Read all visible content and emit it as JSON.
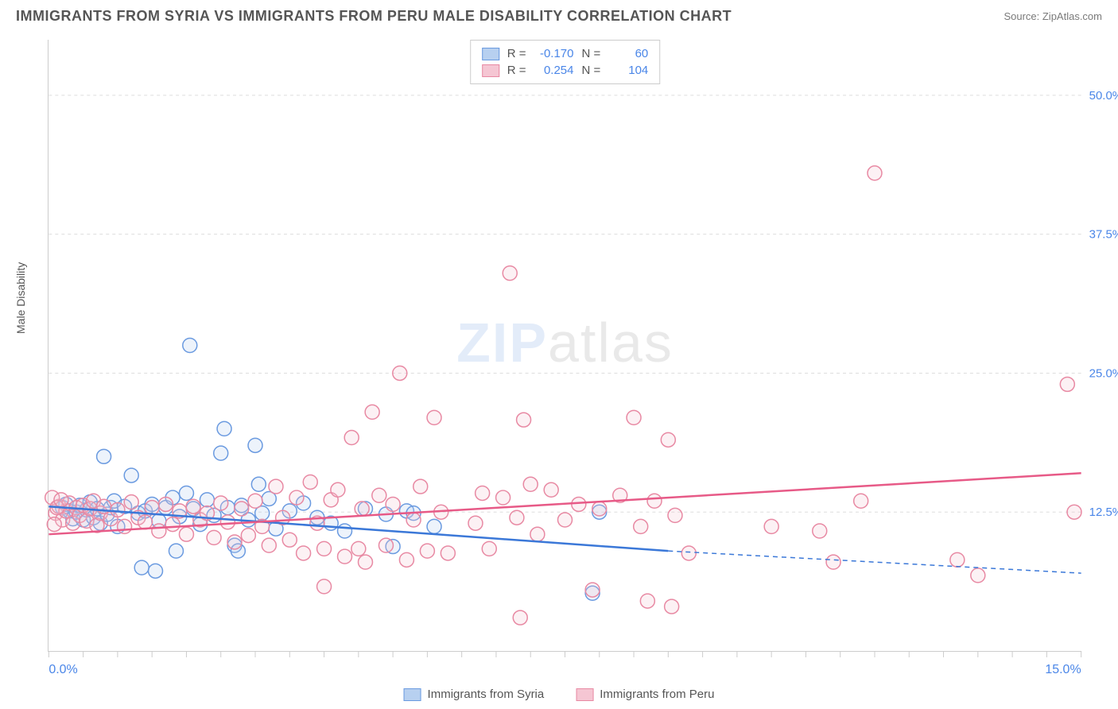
{
  "header": {
    "title": "IMMIGRANTS FROM SYRIA VS IMMIGRANTS FROM PERU MALE DISABILITY CORRELATION CHART",
    "source_prefix": "Source: ",
    "source_name": "ZipAtlas.com"
  },
  "chart": {
    "type": "scatter",
    "ylabel": "Male Disability",
    "xlim": [
      0.0,
      15.0
    ],
    "ylim": [
      0.0,
      55.0
    ],
    "x_axis_labels": {
      "left": "0.0%",
      "right": "15.0%"
    },
    "y_tick_values": [
      12.5,
      25.0,
      37.5,
      50.0
    ],
    "y_tick_labels": [
      "12.5%",
      "25.0%",
      "37.5%",
      "50.0%"
    ],
    "x_minor_tick_step": 0.5,
    "grid_color": "#dddddd",
    "background_color": "#ffffff",
    "axis_color": "#cccccc",
    "label_color": "#4a86e8",
    "title_color": "#555555",
    "marker_radius": 9,
    "marker_stroke_width": 1.5,
    "marker_fill_opacity": 0.25,
    "series": [
      {
        "name": "Immigrants from Syria",
        "color_stroke": "#6a9ae0",
        "color_fill": "#b7d0f0",
        "R": "-0.170",
        "N": "60",
        "trend": {
          "x1": 0.0,
          "y1": 13.0,
          "x2": 9.0,
          "y2": 9.0,
          "extend_to_x": 15.0,
          "extend_to_y": 7.0,
          "line_color": "#3b78d8",
          "line_width": 2.5,
          "dash_after_x": 9.0
        },
        "points": [
          [
            0.2,
            12.9
          ],
          [
            0.25,
            13.2
          ],
          [
            0.3,
            12.6
          ],
          [
            0.35,
            11.9
          ],
          [
            0.4,
            12.5
          ],
          [
            0.45,
            13.1
          ],
          [
            0.5,
            11.8
          ],
          [
            0.55,
            12.7
          ],
          [
            0.6,
            13.4
          ],
          [
            0.65,
            12.0
          ],
          [
            0.7,
            12.8
          ],
          [
            0.75,
            11.5
          ],
          [
            0.8,
            17.5
          ],
          [
            0.85,
            12.3
          ],
          [
            0.9,
            12.9
          ],
          [
            0.95,
            13.5
          ],
          [
            1.0,
            11.2
          ],
          [
            1.1,
            13.0
          ],
          [
            1.2,
            15.8
          ],
          [
            1.3,
            12.4
          ],
          [
            1.35,
            7.5
          ],
          [
            1.4,
            12.6
          ],
          [
            1.5,
            13.2
          ],
          [
            1.55,
            7.2
          ],
          [
            1.6,
            11.7
          ],
          [
            1.7,
            12.9
          ],
          [
            1.8,
            13.8
          ],
          [
            1.85,
            9.0
          ],
          [
            1.9,
            12.1
          ],
          [
            2.0,
            14.2
          ],
          [
            2.05,
            27.5
          ],
          [
            2.1,
            12.8
          ],
          [
            2.2,
            11.4
          ],
          [
            2.3,
            13.6
          ],
          [
            2.4,
            12.2
          ],
          [
            2.5,
            17.8
          ],
          [
            2.55,
            20.0
          ],
          [
            2.6,
            12.9
          ],
          [
            2.7,
            9.5
          ],
          [
            2.75,
            9.0
          ],
          [
            2.8,
            13.1
          ],
          [
            2.9,
            11.8
          ],
          [
            3.0,
            18.5
          ],
          [
            3.05,
            15.0
          ],
          [
            3.1,
            12.4
          ],
          [
            3.2,
            13.7
          ],
          [
            3.3,
            11.0
          ],
          [
            3.5,
            12.6
          ],
          [
            3.7,
            13.3
          ],
          [
            3.9,
            12.0
          ],
          [
            4.1,
            11.5
          ],
          [
            4.3,
            10.8
          ],
          [
            4.6,
            12.8
          ],
          [
            4.9,
            12.3
          ],
          [
            5.0,
            9.4
          ],
          [
            5.2,
            12.6
          ],
          [
            5.3,
            12.4
          ],
          [
            5.6,
            11.2
          ],
          [
            7.9,
            5.2
          ],
          [
            8.0,
            12.5
          ]
        ]
      },
      {
        "name": "Immigrants from Peru",
        "color_stroke": "#e889a3",
        "color_fill": "#f5c6d3",
        "R": "0.254",
        "N": "104",
        "trend": {
          "x1": 0.0,
          "y1": 10.5,
          "x2": 15.0,
          "y2": 16.0,
          "line_color": "#e75a87",
          "line_width": 2.5
        },
        "points": [
          [
            0.1,
            12.4
          ],
          [
            0.15,
            13.0
          ],
          [
            0.2,
            11.8
          ],
          [
            0.25,
            12.6
          ],
          [
            0.3,
            13.3
          ],
          [
            0.35,
            11.5
          ],
          [
            0.4,
            12.9
          ],
          [
            0.45,
            12.2
          ],
          [
            0.5,
            13.1
          ],
          [
            0.55,
            11.7
          ],
          [
            0.6,
            12.8
          ],
          [
            0.65,
            13.5
          ],
          [
            0.7,
            11.3
          ],
          [
            0.75,
            12.4
          ],
          [
            0.8,
            13.0
          ],
          [
            0.9,
            11.9
          ],
          [
            1.0,
            12.7
          ],
          [
            1.1,
            11.2
          ],
          [
            1.2,
            13.4
          ],
          [
            1.3,
            12.0
          ],
          [
            1.4,
            11.6
          ],
          [
            1.5,
            12.9
          ],
          [
            1.6,
            10.8
          ],
          [
            1.7,
            13.2
          ],
          [
            1.8,
            11.4
          ],
          [
            1.9,
            12.6
          ],
          [
            2.0,
            10.5
          ],
          [
            2.1,
            13.0
          ],
          [
            2.2,
            11.8
          ],
          [
            2.3,
            12.4
          ],
          [
            2.4,
            10.2
          ],
          [
            2.5,
            13.3
          ],
          [
            2.6,
            11.6
          ],
          [
            2.7,
            9.8
          ],
          [
            2.8,
            12.8
          ],
          [
            2.9,
            10.4
          ],
          [
            3.0,
            13.5
          ],
          [
            3.1,
            11.2
          ],
          [
            3.2,
            9.5
          ],
          [
            3.3,
            14.8
          ],
          [
            3.4,
            12.0
          ],
          [
            3.5,
            10.0
          ],
          [
            3.6,
            13.8
          ],
          [
            3.7,
            8.8
          ],
          [
            3.8,
            15.2
          ],
          [
            3.9,
            11.5
          ],
          [
            4.0,
            9.2
          ],
          [
            4.1,
            13.6
          ],
          [
            4.2,
            14.5
          ],
          [
            4.3,
            8.5
          ],
          [
            4.4,
            19.2
          ],
          [
            4.5,
            9.2
          ],
          [
            4.55,
            12.8
          ],
          [
            4.6,
            8.0
          ],
          [
            4.7,
            21.5
          ],
          [
            4.8,
            14.0
          ],
          [
            4.9,
            9.5
          ],
          [
            5.0,
            13.2
          ],
          [
            5.1,
            25.0
          ],
          [
            5.2,
            8.2
          ],
          [
            5.3,
            11.8
          ],
          [
            5.4,
            14.8
          ],
          [
            5.5,
            9.0
          ],
          [
            5.6,
            21.0
          ],
          [
            5.7,
            12.5
          ],
          [
            5.8,
            8.8
          ],
          [
            6.2,
            11.5
          ],
          [
            6.3,
            14.2
          ],
          [
            6.4,
            9.2
          ],
          [
            6.6,
            13.8
          ],
          [
            6.7,
            34.0
          ],
          [
            6.8,
            12.0
          ],
          [
            6.85,
            3.0
          ],
          [
            6.9,
            20.8
          ],
          [
            7.0,
            15.0
          ],
          [
            7.1,
            10.5
          ],
          [
            7.3,
            14.5
          ],
          [
            7.5,
            11.8
          ],
          [
            7.7,
            13.2
          ],
          [
            7.9,
            5.5
          ],
          [
            8.0,
            12.8
          ],
          [
            8.3,
            14.0
          ],
          [
            8.5,
            21.0
          ],
          [
            8.6,
            11.2
          ],
          [
            8.7,
            4.5
          ],
          [
            8.8,
            13.5
          ],
          [
            9.0,
            19.0
          ],
          [
            9.05,
            4.0
          ],
          [
            9.1,
            12.2
          ],
          [
            9.3,
            8.8
          ],
          [
            10.5,
            11.2
          ],
          [
            11.2,
            10.8
          ],
          [
            11.4,
            8.0
          ],
          [
            11.8,
            13.5
          ],
          [
            12.0,
            43.0
          ],
          [
            13.2,
            8.2
          ],
          [
            13.5,
            6.8
          ],
          [
            14.8,
            24.0
          ],
          [
            14.9,
            12.5
          ],
          [
            0.05,
            13.8
          ],
          [
            0.08,
            11.4
          ],
          [
            0.12,
            12.9
          ],
          [
            0.18,
            13.6
          ],
          [
            4.0,
            5.8
          ]
        ]
      }
    ],
    "stats_legend_labels": {
      "R": "R =",
      "N": "N ="
    },
    "bottom_legend": [
      {
        "label": "Immigrants from Syria",
        "swatch_fill": "#b7d0f0",
        "swatch_stroke": "#6a9ae0"
      },
      {
        "label": "Immigrants from Peru",
        "swatch_fill": "#f5c6d3",
        "swatch_stroke": "#e889a3"
      }
    ],
    "watermark": {
      "bold": "ZIP",
      "rest": "atlas"
    }
  }
}
